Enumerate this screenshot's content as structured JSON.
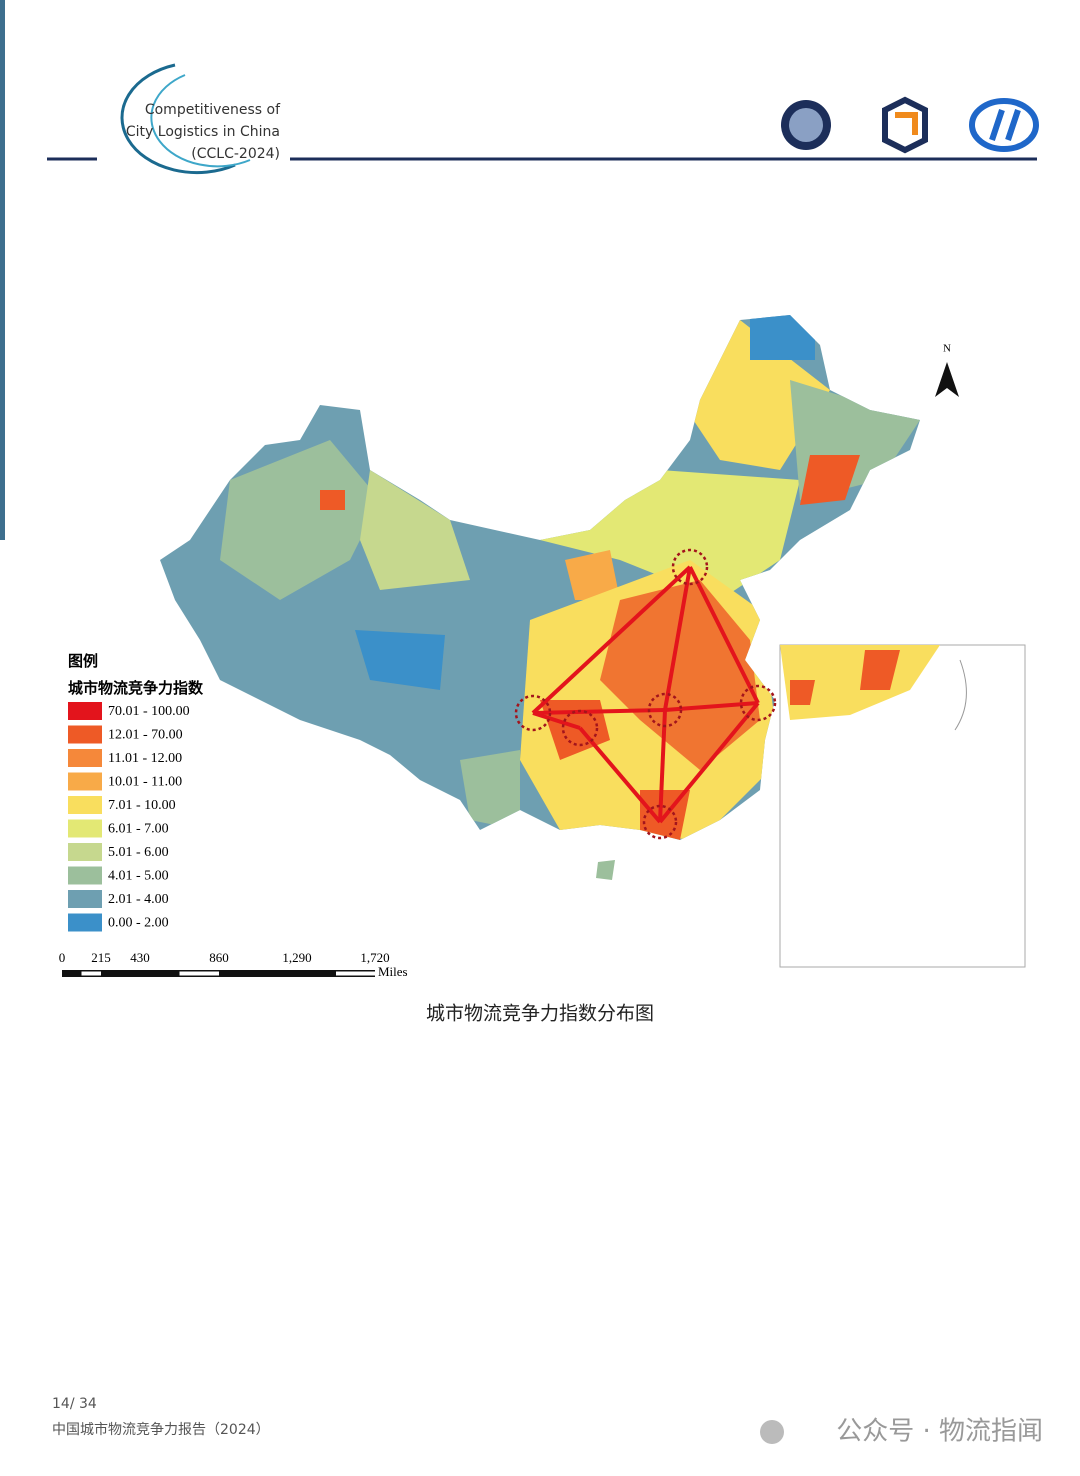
{
  "header": {
    "logo_lines": [
      "Competitiveness of",
      "City Logistics in China",
      "(CCLC-2024)"
    ]
  },
  "map": {
    "north": "N",
    "legend": {
      "title": "图例",
      "subtitle": "城市物流竞争力指数",
      "items": [
        {
          "label": "70.01 - 100.00",
          "color": "#e3141c"
        },
        {
          "label": "12.01 - 70.00",
          "color": "#ee5a26"
        },
        {
          "label": "11.01 - 12.00",
          "color": "#f5883a"
        },
        {
          "label": "10.01 - 11.00",
          "color": "#f8aa48"
        },
        {
          "label": "7.01 - 10.00",
          "color": "#f9de5e"
        },
        {
          "label": "6.01 - 7.00",
          "color": "#e3e874"
        },
        {
          "label": "5.01 - 6.00",
          "color": "#c6d88e"
        },
        {
          "label": "4.01 - 5.00",
          "color": "#9cbf9c"
        },
        {
          "label": "2.01 - 4.00",
          "color": "#6e9fb1"
        },
        {
          "label": "0.00 - 2.00",
          "color": "#3b90c9"
        }
      ]
    },
    "scale": {
      "ticks": [
        "0",
        "215",
        "430",
        "860",
        "1,290",
        "1,720"
      ],
      "unit": "Miles"
    }
  },
  "caption": "城市物流竞争力指数分布图",
  "footer": {
    "page": "14/ 34",
    "report": "中国城市物流竞争力报告（2024）",
    "watermark": "公众号 · 物流指闻"
  }
}
